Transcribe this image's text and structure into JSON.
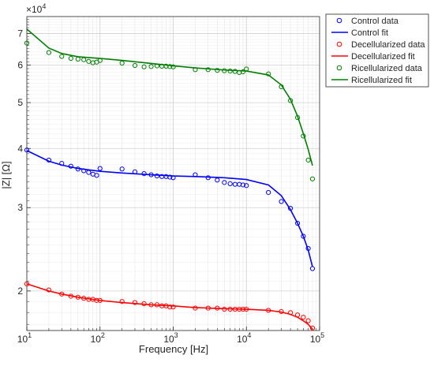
{
  "chart_data": {
    "type": "scatter",
    "xlabel": "Frequency [Hz]",
    "ylabel": "|Z| [Ω]",
    "xscale": "log",
    "yscale": "log",
    "xlim": [
      10,
      100000
    ],
    "ylim": [
      16500,
      76000
    ],
    "grid": true,
    "minor_grid": true,
    "legend_position": "outside-top-right",
    "y_exponent_label": "×10",
    "y_exponent_value": "4",
    "x_tick_labels": [
      {
        "base": "10",
        "exp": "1",
        "value": 10
      },
      {
        "base": "10",
        "exp": "2",
        "value": 100
      },
      {
        "base": "10",
        "exp": "3",
        "value": 1000
      },
      {
        "base": "10",
        "exp": "4",
        "value": 10000
      },
      {
        "base": "10",
        "exp": "5",
        "value": 100000
      }
    ],
    "y_tick_labels": [
      {
        "label": "2",
        "value": 20000
      },
      {
        "label": "3",
        "value": 30000
      },
      {
        "label": "4",
        "value": 40000
      },
      {
        "label": "5",
        "value": 50000
      },
      {
        "label": "6",
        "value": 60000
      },
      {
        "label": "7",
        "value": 70000
      }
    ],
    "colors": {
      "control": "#0000ff",
      "decellularized": "#ff0000",
      "ricellularized": "#008000"
    },
    "series": [
      {
        "name": "Control data",
        "kind": "markers",
        "group": "control",
        "x": [
          10,
          20,
          30,
          40,
          50,
          60,
          70,
          80,
          90,
          100,
          200,
          300,
          400,
          500,
          600,
          700,
          800,
          900,
          1000,
          2000,
          3000,
          4000,
          5000,
          6000,
          7000,
          8000,
          9000,
          10000,
          20000,
          30000,
          40000,
          50000,
          60000,
          70000,
          80000
        ],
        "y": [
          39700,
          37800,
          37200,
          36700,
          36200,
          35900,
          35600,
          35300,
          35100,
          36300,
          36200,
          35700,
          35400,
          35200,
          35000,
          34900,
          34900,
          34800,
          34700,
          35200,
          34700,
          34300,
          33900,
          33700,
          33600,
          33600,
          33500,
          33400,
          32300,
          30900,
          29900,
          27800,
          26100,
          24600,
          22300
        ]
      },
      {
        "name": "Control fit",
        "kind": "line",
        "group": "control",
        "x": [
          10,
          20,
          30,
          50,
          100,
          200,
          500,
          1000,
          2000,
          5000,
          10000,
          20000,
          30000,
          40000,
          50000,
          60000,
          70000,
          80000
        ],
        "y": [
          39600,
          37600,
          36900,
          36300,
          35800,
          35500,
          35200,
          35000,
          34900,
          34700,
          34400,
          33500,
          31800,
          29700,
          27800,
          26100,
          24400,
          22500
        ]
      },
      {
        "name": "Decellularized data",
        "kind": "markers",
        "group": "decellularized",
        "x": [
          10,
          20,
          30,
          40,
          50,
          60,
          70,
          80,
          90,
          100,
          200,
          300,
          400,
          500,
          600,
          700,
          800,
          900,
          1000,
          2000,
          3000,
          4000,
          5000,
          6000,
          7000,
          8000,
          9000,
          10000,
          20000,
          30000,
          40000,
          50000,
          60000,
          70000,
          80000
        ],
        "y": [
          20700,
          20100,
          19700,
          19500,
          19400,
          19300,
          19200,
          19200,
          19100,
          19100,
          19000,
          18900,
          18800,
          18700,
          18700,
          18600,
          18600,
          18500,
          18500,
          18400,
          18400,
          18400,
          18300,
          18300,
          18300,
          18300,
          18300,
          18300,
          18200,
          18100,
          18000,
          17800,
          17600,
          17300,
          16700
        ]
      },
      {
        "name": "Decellularized fit",
        "kind": "line",
        "group": "decellularized",
        "x": [
          10,
          20,
          30,
          50,
          100,
          200,
          500,
          1000,
          2000,
          5000,
          10000,
          20000,
          30000,
          40000,
          50000,
          60000,
          70000,
          80000
        ],
        "y": [
          20700,
          20000,
          19700,
          19400,
          19100,
          18900,
          18700,
          18600,
          18450,
          18350,
          18300,
          18200,
          18050,
          17850,
          17600,
          17300,
          17000,
          16600
        ]
      },
      {
        "name": "Ricellularized data",
        "kind": "markers",
        "group": "ricellularized",
        "x": [
          10,
          20,
          30,
          40,
          50,
          60,
          70,
          80,
          90,
          100,
          200,
          300,
          400,
          500,
          600,
          700,
          800,
          900,
          1000,
          2000,
          3000,
          4000,
          5000,
          6000,
          7000,
          8000,
          9000,
          10000,
          20000,
          30000,
          40000,
          50000,
          60000,
          70000,
          80000
        ],
        "y": [
          66800,
          63800,
          62600,
          62000,
          61800,
          61600,
          61100,
          60700,
          60900,
          61400,
          60600,
          59900,
          59500,
          59600,
          59800,
          59700,
          59700,
          59600,
          59500,
          58700,
          58700,
          58500,
          58400,
          58300,
          58200,
          57900,
          58100,
          58900,
          57500,
          54000,
          50500,
          46500,
          42500,
          37800,
          34500
        ]
      },
      {
        "name": "Ricellularized fit",
        "kind": "line",
        "group": "ricellularized",
        "x": [
          10,
          20,
          30,
          50,
          100,
          200,
          500,
          1000,
          2000,
          5000,
          10000,
          20000,
          30000,
          40000,
          50000,
          60000,
          70000,
          80000
        ],
        "y": [
          71500,
          65200,
          63500,
          62500,
          62000,
          61400,
          60500,
          59800,
          59200,
          58600,
          58300,
          57200,
          54500,
          50800,
          46800,
          43000,
          39800,
          36800
        ]
      }
    ]
  }
}
